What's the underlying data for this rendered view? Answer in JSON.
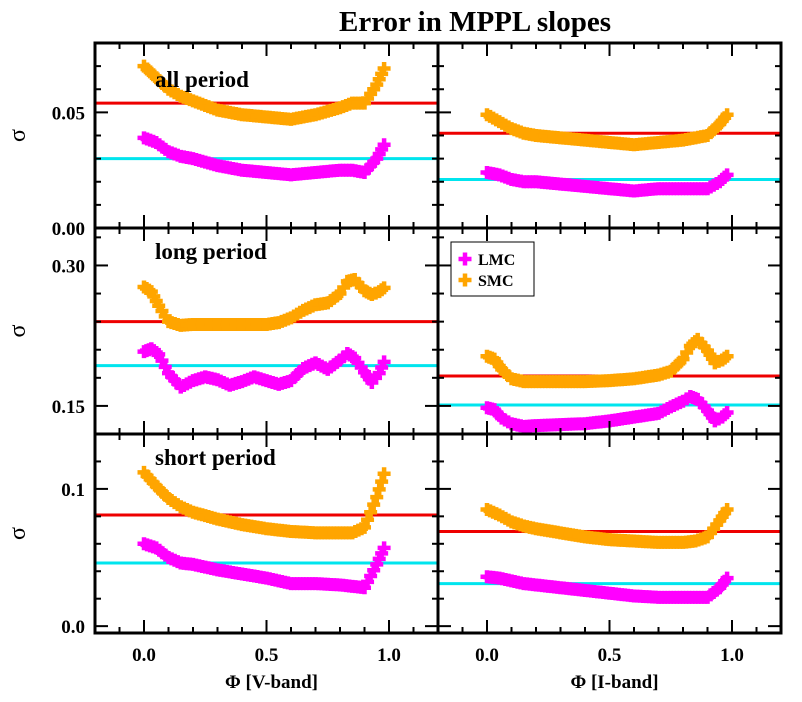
{
  "title": "Error in MPPL slopes",
  "chart_data": {
    "type": "scatter",
    "xlim": [
      -0.2,
      1.2
    ],
    "x_ticks": [
      0.0,
      0.5,
      1.0
    ],
    "x_tick_labels": [
      "0.0",
      "0.5",
      "1.0"
    ],
    "column_xlabels": [
      "Φ [V-band]",
      "Φ [I-band]"
    ],
    "ylabel": "σ",
    "legend": {
      "entries": [
        {
          "name": "LMC",
          "color": "#ff00ff"
        },
        {
          "name": "SMC",
          "color": "#ffa500"
        }
      ],
      "location": "upper-left of right middle panel"
    },
    "colors": {
      "LMC": "#ff00ff",
      "SMC": "#ffa500",
      "LMC_mean": "#00e5ee",
      "SMC_mean": "#ee0000"
    },
    "panels": [
      {
        "row": "all period",
        "band": "V-band",
        "annotation": "all period",
        "ylim": [
          0.0,
          0.08
        ],
        "y_ticks": [
          0.0,
          0.05
        ],
        "y_tick_labels": [
          "0.00",
          "0.05"
        ],
        "LMC": {
          "x": [
            0.0,
            0.05,
            0.1,
            0.15,
            0.2,
            0.3,
            0.4,
            0.5,
            0.6,
            0.7,
            0.8,
            0.85,
            0.9,
            0.95,
            0.98
          ],
          "y": [
            0.039,
            0.037,
            0.033,
            0.031,
            0.03,
            0.027,
            0.025,
            0.024,
            0.023,
            0.024,
            0.025,
            0.025,
            0.024,
            0.03,
            0.036
          ]
        },
        "SMC": {
          "x": [
            0.0,
            0.05,
            0.1,
            0.15,
            0.2,
            0.3,
            0.4,
            0.5,
            0.6,
            0.7,
            0.8,
            0.85,
            0.9,
            0.95,
            0.98
          ],
          "y": [
            0.07,
            0.065,
            0.06,
            0.057,
            0.055,
            0.051,
            0.049,
            0.048,
            0.047,
            0.049,
            0.052,
            0.054,
            0.054,
            0.062,
            0.069
          ]
        },
        "LMC_mean": 0.03,
        "SMC_mean": 0.054
      },
      {
        "row": "all period",
        "band": "I-band",
        "annotation": "",
        "ylim": [
          0.0,
          0.08
        ],
        "y_ticks": [
          0.0,
          0.05
        ],
        "y_tick_labels": [
          "",
          ""
        ],
        "LMC": {
          "x": [
            0.0,
            0.05,
            0.1,
            0.15,
            0.2,
            0.3,
            0.4,
            0.5,
            0.6,
            0.7,
            0.8,
            0.85,
            0.9,
            0.95,
            0.98
          ],
          "y": [
            0.024,
            0.023,
            0.021,
            0.02,
            0.02,
            0.019,
            0.018,
            0.017,
            0.016,
            0.017,
            0.017,
            0.017,
            0.017,
            0.02,
            0.023
          ]
        },
        "SMC": {
          "x": [
            0.0,
            0.05,
            0.1,
            0.15,
            0.2,
            0.3,
            0.4,
            0.5,
            0.6,
            0.7,
            0.8,
            0.85,
            0.9,
            0.95,
            0.98
          ],
          "y": [
            0.049,
            0.046,
            0.043,
            0.041,
            0.04,
            0.039,
            0.038,
            0.037,
            0.036,
            0.037,
            0.038,
            0.039,
            0.04,
            0.045,
            0.049
          ]
        },
        "LMC_mean": 0.021,
        "SMC_mean": 0.041
      },
      {
        "row": "long period",
        "band": "V-band",
        "annotation": "long period",
        "ylim": [
          0.12,
          0.34
        ],
        "y_ticks": [
          0.15,
          0.3
        ],
        "y_tick_labels": [
          "0.15",
          "0.30"
        ],
        "LMC": {
          "x": [
            0.0,
            0.03,
            0.06,
            0.1,
            0.15,
            0.2,
            0.25,
            0.3,
            0.35,
            0.4,
            0.45,
            0.5,
            0.55,
            0.6,
            0.65,
            0.7,
            0.75,
            0.8,
            0.83,
            0.86,
            0.9,
            0.93,
            0.96,
            0.98
          ],
          "y": [
            0.208,
            0.211,
            0.205,
            0.185,
            0.17,
            0.177,
            0.181,
            0.178,
            0.172,
            0.176,
            0.181,
            0.177,
            0.173,
            0.177,
            0.19,
            0.196,
            0.189,
            0.199,
            0.206,
            0.201,
            0.186,
            0.175,
            0.185,
            0.197
          ]
        },
        "SMC": {
          "x": [
            0.0,
            0.03,
            0.06,
            0.1,
            0.15,
            0.2,
            0.3,
            0.4,
            0.5,
            0.55,
            0.6,
            0.65,
            0.7,
            0.75,
            0.8,
            0.83,
            0.86,
            0.9,
            0.93,
            0.96,
            0.98
          ],
          "y": [
            0.277,
            0.272,
            0.257,
            0.24,
            0.236,
            0.237,
            0.237,
            0.237,
            0.237,
            0.239,
            0.244,
            0.252,
            0.258,
            0.26,
            0.27,
            0.283,
            0.285,
            0.273,
            0.269,
            0.272,
            0.276
          ]
        },
        "LMC_mean": 0.193,
        "SMC_mean": 0.24
      },
      {
        "row": "long period",
        "band": "I-band",
        "annotation": "",
        "ylim": [
          0.12,
          0.34
        ],
        "y_ticks": [
          0.15,
          0.3
        ],
        "y_tick_labels": [
          "",
          ""
        ],
        "LMC": {
          "x": [
            0.0,
            0.03,
            0.06,
            0.1,
            0.15,
            0.2,
            0.3,
            0.4,
            0.5,
            0.6,
            0.7,
            0.75,
            0.8,
            0.83,
            0.86,
            0.9,
            0.93,
            0.96,
            0.98
          ],
          "y": [
            0.148,
            0.146,
            0.137,
            0.131,
            0.128,
            0.129,
            0.13,
            0.131,
            0.134,
            0.138,
            0.142,
            0.149,
            0.155,
            0.16,
            0.157,
            0.145,
            0.134,
            0.138,
            0.143
          ]
        },
        "SMC": {
          "x": [
            0.0,
            0.03,
            0.06,
            0.1,
            0.15,
            0.2,
            0.3,
            0.4,
            0.5,
            0.6,
            0.7,
            0.75,
            0.8,
            0.83,
            0.86,
            0.9,
            0.93,
            0.96,
            0.98
          ],
          "y": [
            0.203,
            0.2,
            0.189,
            0.179,
            0.176,
            0.176,
            0.176,
            0.176,
            0.177,
            0.179,
            0.183,
            0.187,
            0.2,
            0.214,
            0.221,
            0.209,
            0.196,
            0.199,
            0.203
          ]
        },
        "LMC_mean": 0.151,
        "SMC_mean": 0.182
      },
      {
        "row": "short period",
        "band": "V-band",
        "annotation": "short period",
        "ylim": [
          -0.005,
          0.14
        ],
        "y_ticks": [
          0.0,
          0.1
        ],
        "y_tick_labels": [
          "0.0",
          "0.1"
        ],
        "LMC": {
          "x": [
            0.0,
            0.05,
            0.1,
            0.15,
            0.2,
            0.3,
            0.4,
            0.5,
            0.6,
            0.7,
            0.8,
            0.85,
            0.9,
            0.95,
            0.98
          ],
          "y": [
            0.06,
            0.057,
            0.05,
            0.046,
            0.045,
            0.041,
            0.038,
            0.035,
            0.031,
            0.031,
            0.03,
            0.029,
            0.028,
            0.045,
            0.057
          ]
        },
        "SMC": {
          "x": [
            0.0,
            0.05,
            0.1,
            0.15,
            0.2,
            0.3,
            0.4,
            0.5,
            0.6,
            0.7,
            0.8,
            0.85,
            0.9,
            0.95,
            0.98
          ],
          "y": [
            0.112,
            0.102,
            0.093,
            0.087,
            0.083,
            0.078,
            0.074,
            0.071,
            0.069,
            0.068,
            0.068,
            0.068,
            0.072,
            0.094,
            0.111
          ]
        },
        "LMC_mean": 0.046,
        "SMC_mean": 0.081
      },
      {
        "row": "short period",
        "band": "I-band",
        "annotation": "",
        "ylim": [
          -0.005,
          0.14
        ],
        "y_ticks": [
          0.0,
          0.1
        ],
        "y_tick_labels": [
          "",
          ""
        ],
        "LMC": {
          "x": [
            0.0,
            0.05,
            0.1,
            0.15,
            0.2,
            0.3,
            0.4,
            0.5,
            0.6,
            0.7,
            0.8,
            0.85,
            0.9,
            0.95,
            0.98
          ],
          "y": [
            0.036,
            0.035,
            0.033,
            0.031,
            0.03,
            0.028,
            0.026,
            0.024,
            0.022,
            0.021,
            0.021,
            0.021,
            0.021,
            0.028,
            0.035
          ]
        },
        "SMC": {
          "x": [
            0.0,
            0.05,
            0.1,
            0.15,
            0.2,
            0.3,
            0.4,
            0.5,
            0.6,
            0.7,
            0.8,
            0.85,
            0.9,
            0.95,
            0.98
          ],
          "y": [
            0.085,
            0.081,
            0.076,
            0.073,
            0.071,
            0.068,
            0.065,
            0.063,
            0.062,
            0.061,
            0.061,
            0.062,
            0.065,
            0.077,
            0.085
          ]
        },
        "LMC_mean": 0.031,
        "SMC_mean": 0.069
      }
    ]
  }
}
